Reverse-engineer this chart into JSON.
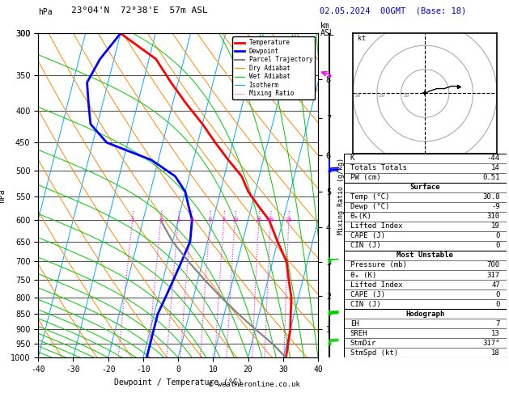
{
  "title_left": "23°04'N  72°38'E  57m ASL",
  "title_right": "02.05.2024  00GMT  (Base: 18)",
  "xlabel": "Dewpoint / Temperature (°C)",
  "ylabel_left": "hPa",
  "copyright": "© weatheronline.co.uk",
  "xlim": [
    -40,
    40
  ],
  "pmin": 300,
  "pmax": 1000,
  "p_levels": [
    300,
    350,
    400,
    450,
    500,
    550,
    600,
    650,
    700,
    750,
    800,
    850,
    900,
    950
  ],
  "skew_factor": 45,
  "mixing_ratio_lines": [
    1,
    2,
    3,
    4,
    6,
    8,
    10,
    16,
    20,
    28
  ],
  "legend_items": [
    {
      "label": "Temperature",
      "color": "#ff0000",
      "lw": 2.0,
      "ls": "-"
    },
    {
      "label": "Dewpoint",
      "color": "#0000ff",
      "lw": 2.0,
      "ls": "-"
    },
    {
      "label": "Parcel Trajectory",
      "color": "#808080",
      "lw": 1.5,
      "ls": "-"
    },
    {
      "label": "Dry Adiabat",
      "color": "#ff8800",
      "lw": 0.8,
      "ls": "-"
    },
    {
      "label": "Wet Adiabat",
      "color": "#00cc00",
      "lw": 0.8,
      "ls": "-"
    },
    {
      "label": "Isotherm",
      "color": "#00aaff",
      "lw": 0.8,
      "ls": "-"
    },
    {
      "label": "Mixing Ratio",
      "color": "#ff00ff",
      "lw": 0.8,
      "ls": ":"
    }
  ],
  "temp_profile_T": [
    -40,
    -28,
    -22,
    -16,
    -10,
    -5,
    0,
    5,
    8,
    12,
    16,
    20,
    24,
    26,
    28,
    29,
    30,
    30.8
  ],
  "temp_profile_P": [
    300,
    330,
    360,
    390,
    420,
    450,
    480,
    510,
    540,
    570,
    600,
    650,
    700,
    750,
    800,
    850,
    900,
    1000
  ],
  "dewp_profile_T": [
    -40,
    -44,
    -46,
    -44,
    -42,
    -36,
    -22,
    -14,
    -10,
    -8,
    -6,
    -5,
    -6,
    -7,
    -8,
    -9,
    -9,
    -9
  ],
  "dewp_profile_P": [
    300,
    330,
    360,
    390,
    420,
    450,
    480,
    510,
    540,
    570,
    600,
    650,
    700,
    750,
    800,
    850,
    900,
    1000
  ],
  "parcel_profile_T": [
    30.8,
    26,
    20,
    14,
    8,
    2,
    -4,
    -10,
    -15
  ],
  "parcel_profile_P": [
    1000,
    950,
    900,
    850,
    800,
    750,
    700,
    650,
    600
  ],
  "info_panel": {
    "K": "-44",
    "Totals Totals": "14",
    "PW (cm)": "0.51",
    "Surface_rows": [
      [
        "Temp (°C)",
        "30.8"
      ],
      [
        "Dewp (°C)",
        "-9"
      ],
      [
        "θₑ(K)",
        "310"
      ],
      [
        "Lifted Index",
        "19"
      ],
      [
        "CAPE (J)",
        "0"
      ],
      [
        "CIN (J)",
        "0"
      ]
    ],
    "MostUnstable_rows": [
      [
        "Pressure (mb)",
        "700"
      ],
      [
        "θₑ (K)",
        "317"
      ],
      [
        "Lifted Index",
        "47"
      ],
      [
        "CAPE (J)",
        "0"
      ],
      [
        "CIN (J)",
        "0"
      ]
    ],
    "Hodograph_rows": [
      [
        "EH",
        "7"
      ],
      [
        "SREH",
        "13"
      ],
      [
        "StmDir",
        "317°"
      ],
      [
        "StmSpd (kt)",
        "18"
      ]
    ]
  },
  "bg_color": "#ffffff"
}
